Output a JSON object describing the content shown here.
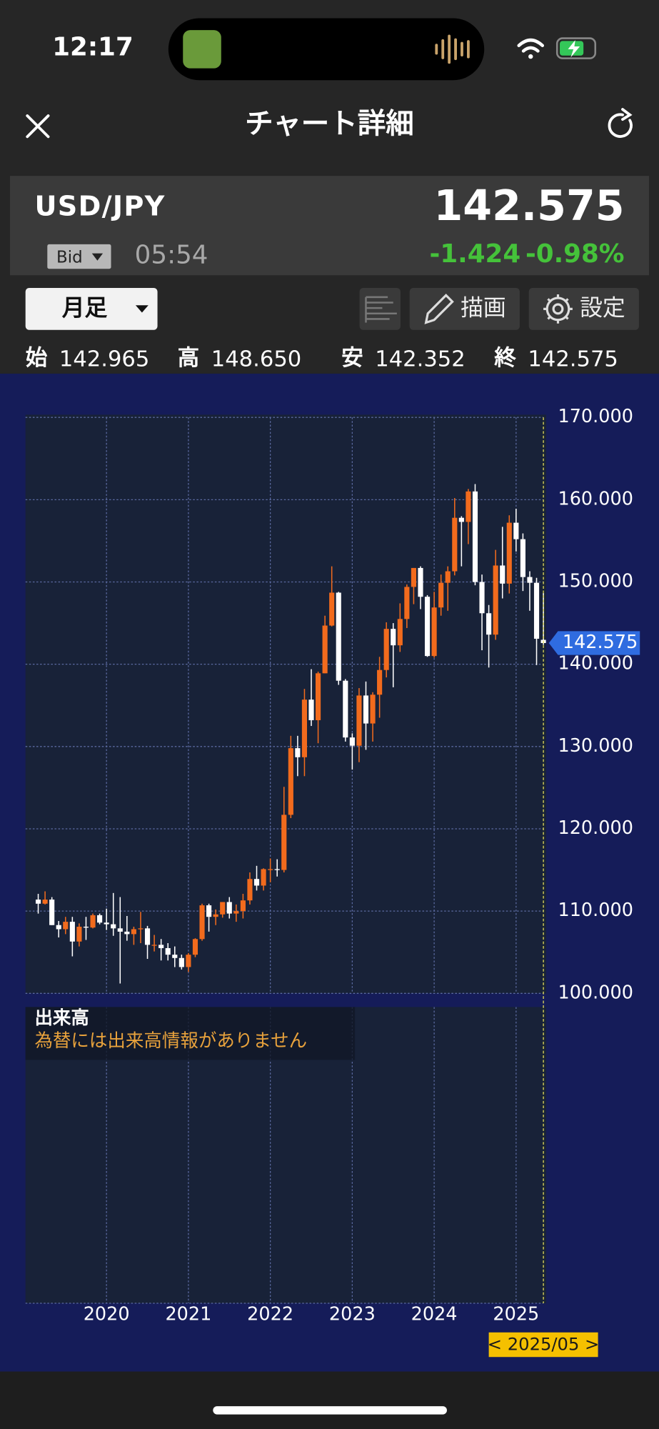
{
  "status_bar": {
    "time": "12:17"
  },
  "header": {
    "title": "チャート詳細"
  },
  "quote": {
    "symbol": "USD/JPY",
    "price": "142.575",
    "side": "Bid",
    "time": "05:54",
    "change": "-1.424",
    "change_pct": "-0.98%"
  },
  "toolbar": {
    "period": "月足",
    "draw": "描画",
    "settings": "設定"
  },
  "ohlc_bar": {
    "labels": [
      "始",
      "高",
      "安",
      "終"
    ],
    "values": [
      "142.965",
      "148.650",
      "142.352",
      "142.575"
    ]
  },
  "chart_data": {
    "type": "candlestick",
    "categories": [
      "2019/03",
      "2019/04",
      "2019/05",
      "2019/06",
      "2019/07",
      "2019/08",
      "2019/09",
      "2019/10",
      "2019/11",
      "2019/12",
      "2020/01",
      "2020/02",
      "2020/03",
      "2020/04",
      "2020/05",
      "2020/06",
      "2020/07",
      "2020/08",
      "2020/09",
      "2020/10",
      "2020/11",
      "2020/12",
      "2021/01",
      "2021/02",
      "2021/03",
      "2021/04",
      "2021/05",
      "2021/06",
      "2021/07",
      "2021/08",
      "2021/09",
      "2021/10",
      "2021/11",
      "2021/12",
      "2022/01",
      "2022/02",
      "2022/03",
      "2022/04",
      "2022/05",
      "2022/06",
      "2022/07",
      "2022/08",
      "2022/09",
      "2022/10",
      "2022/11",
      "2022/12",
      "2023/01",
      "2023/02",
      "2023/03",
      "2023/04",
      "2023/05",
      "2023/06",
      "2023/07",
      "2023/08",
      "2023/09",
      "2023/10",
      "2023/11",
      "2023/12",
      "2024/01",
      "2024/02",
      "2024/03",
      "2024/04",
      "2024/05",
      "2024/06",
      "2024/07",
      "2024/08",
      "2024/09",
      "2024/10",
      "2024/11",
      "2024/12",
      "2025/01",
      "2025/02",
      "2025/03",
      "2025/04",
      "2025/05"
    ],
    "open": [
      111.4,
      110.9,
      111.4,
      108.3,
      107.8,
      108.7,
      106.3,
      108.1,
      108.0,
      109.5,
      108.6,
      108.4,
      107.9,
      107.5,
      107.2,
      107.8,
      107.9,
      105.9,
      105.9,
      105.5,
      104.7,
      104.3,
      103.2,
      104.7,
      106.6,
      110.7,
      109.3,
      109.6,
      111.1,
      109.7,
      110.0,
      111.3,
      113.9,
      113.1,
      115.1,
      115.1,
      115.0,
      121.7,
      129.8,
      128.7,
      135.7,
      133.2,
      138.9,
      144.7,
      148.7,
      138.0,
      131.1,
      130.1,
      136.2,
      132.8,
      136.3,
      139.3,
      144.3,
      142.3,
      145.5,
      149.4,
      151.7,
      148.2,
      141.0,
      146.9,
      149.9,
      151.3,
      157.8,
      157.3,
      161.0,
      150.0,
      146.2,
      143.6,
      152.0,
      149.8,
      157.2,
      155.2,
      150.6,
      149.9,
      142.965
    ],
    "high": [
      112.1,
      112.4,
      111.7,
      108.8,
      109.3,
      109.3,
      108.5,
      109.3,
      109.7,
      109.7,
      110.3,
      112.2,
      111.7,
      109.4,
      108.1,
      109.9,
      108.2,
      107.1,
      106.6,
      106.1,
      105.7,
      104.7,
      104.9,
      106.7,
      110.9,
      110.9,
      110.2,
      111.1,
      111.7,
      110.8,
      112.1,
      114.7,
      115.5,
      115.2,
      116.4,
      116.3,
      125.1,
      131.3,
      131.3,
      137.0,
      139.4,
      139.1,
      145.9,
      151.9,
      148.8,
      138.2,
      131.6,
      137.1,
      137.9,
      136.6,
      140.9,
      145.1,
      145.0,
      147.4,
      149.7,
      151.7,
      151.9,
      148.4,
      148.8,
      150.9,
      151.9,
      160.2,
      157.99,
      161.3,
      161.9,
      150.9,
      147.2,
      153.9,
      156.7,
      158.1,
      158.9,
      155.9,
      151.3,
      150.5,
      148.65
    ],
    "low": [
      109.7,
      110.8,
      108.3,
      106.8,
      107.2,
      104.5,
      105.7,
      106.5,
      107.9,
      108.4,
      107.7,
      107.0,
      101.2,
      106.4,
      105.9,
      106.1,
      104.2,
      105.1,
      104.0,
      104.0,
      103.2,
      102.9,
      102.6,
      104.4,
      106.4,
      107.5,
      108.3,
      109.2,
      109.1,
      108.7,
      109.1,
      110.8,
      112.5,
      112.5,
      113.5,
      114.2,
      114.7,
      121.3,
      126.4,
      126.4,
      132.5,
      130.4,
      138.9,
      144.6,
      137.5,
      130.6,
      127.2,
      128.1,
      129.6,
      130.6,
      133.5,
      138.4,
      137.2,
      141.5,
      144.4,
      147.3,
      146.7,
      140.9,
      140.8,
      145.9,
      146.5,
      150.8,
      151.9,
      154.6,
      149.6,
      141.7,
      139.6,
      142.97,
      148.0,
      148.6,
      153.7,
      148.9,
      146.5,
      139.9,
      142.352
    ],
    "close": [
      110.9,
      111.4,
      108.3,
      107.8,
      108.7,
      106.3,
      108.1,
      108.0,
      109.5,
      108.6,
      108.4,
      107.9,
      107.5,
      107.2,
      107.8,
      107.9,
      105.9,
      105.9,
      105.5,
      104.7,
      104.3,
      103.2,
      104.7,
      106.6,
      110.7,
      109.3,
      109.6,
      111.1,
      109.7,
      110.0,
      111.3,
      113.9,
      113.1,
      115.1,
      115.1,
      115.0,
      121.7,
      129.8,
      128.7,
      135.7,
      133.2,
      138.9,
      144.7,
      148.7,
      138.0,
      131.1,
      130.1,
      136.2,
      132.8,
      136.3,
      139.3,
      144.3,
      142.3,
      145.5,
      149.4,
      151.7,
      148.2,
      141.0,
      146.9,
      149.9,
      151.3,
      157.8,
      157.3,
      161.0,
      150.0,
      146.2,
      143.6,
      152.0,
      149.8,
      157.2,
      155.2,
      150.6,
      149.9,
      143.1,
      142.575
    ],
    "up_color": "#f26b1d",
    "down_color": "#ffffff",
    "ylim": [
      100,
      170
    ],
    "yticks": [
      {
        "value": 100,
        "label": "100.000"
      },
      {
        "value": 110,
        "label": "110.000"
      },
      {
        "value": 120,
        "label": "120.000"
      },
      {
        "value": 130,
        "label": "130.000"
      },
      {
        "value": 140,
        "label": "140.000"
      },
      {
        "value": 150,
        "label": "150.000"
      },
      {
        "value": 160,
        "label": "160.000"
      },
      {
        "value": 170,
        "label": "170.000"
      }
    ],
    "xticks": [
      {
        "value": "2020/01",
        "label": "2020"
      },
      {
        "value": "2021/01",
        "label": "2021"
      },
      {
        "value": "2022/01",
        "label": "2022"
      },
      {
        "value": "2023/01",
        "label": "2023"
      },
      {
        "value": "2024/01",
        "label": "2024"
      },
      {
        "value": "2025/01",
        "label": "2025"
      }
    ],
    "grid": true,
    "last_price": {
      "value": 142.575,
      "label": "142.575"
    },
    "cursor_label": "< 2025/05 >",
    "volume_title": "出来高",
    "volume_note": "為替には出来高情報がありません"
  }
}
